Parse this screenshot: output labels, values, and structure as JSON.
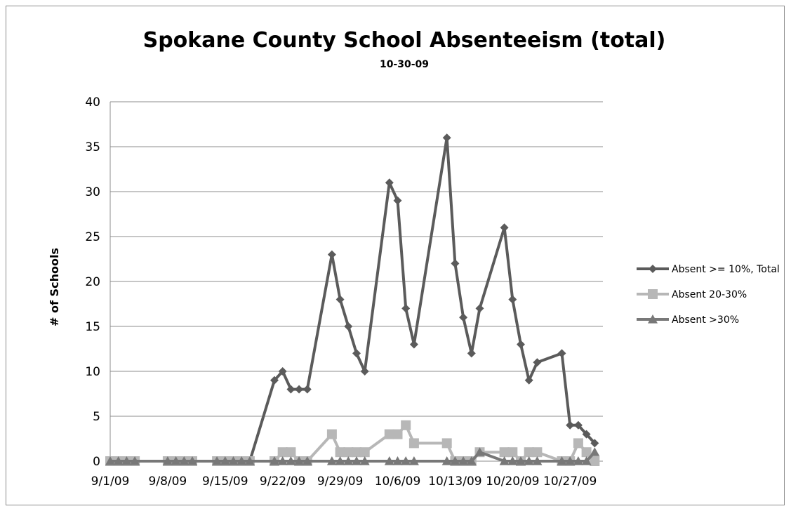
{
  "chart_data": {
    "type": "line",
    "title": "Spokane County School Absenteeism (total)",
    "subtitle": "10-30-09",
    "xlabel": "",
    "ylabel": "# of Schools",
    "ylim": [
      0,
      40
    ],
    "yticks": [
      "0",
      "5",
      "10",
      "15",
      "20",
      "25",
      "30",
      "35",
      "40"
    ],
    "xlim": [
      "2009-09-01",
      "2009-10-31"
    ],
    "xtick_labels": [
      "9/1/09",
      "9/8/09",
      "9/15/09",
      "9/22/09",
      "9/29/09",
      "10/6/09",
      "10/13/09",
      "10/20/09",
      "10/27/09"
    ],
    "xtick_dates": [
      "2009-09-01",
      "2009-09-08",
      "2009-09-15",
      "2009-09-22",
      "2009-09-29",
      "2009-10-06",
      "2009-10-13",
      "2009-10-20",
      "2009-10-27"
    ],
    "grid": "horizontal",
    "legend_position": "right",
    "series": [
      {
        "name": "Absent >= 10%, Total",
        "color": "#5b5b5b",
        "marker": "diamond",
        "points": [
          [
            "2009-09-01",
            0
          ],
          [
            "2009-09-02",
            0
          ],
          [
            "2009-09-03",
            0
          ],
          [
            "2009-09-04",
            0
          ],
          [
            "2009-09-08",
            0
          ],
          [
            "2009-09-09",
            0
          ],
          [
            "2009-09-10",
            0
          ],
          [
            "2009-09-11",
            0
          ],
          [
            "2009-09-14",
            0
          ],
          [
            "2009-09-15",
            0
          ],
          [
            "2009-09-16",
            0
          ],
          [
            "2009-09-17",
            0
          ],
          [
            "2009-09-18",
            0
          ],
          [
            "2009-09-21",
            9
          ],
          [
            "2009-09-22",
            10
          ],
          [
            "2009-09-23",
            8
          ],
          [
            "2009-09-24",
            8
          ],
          [
            "2009-09-25",
            8
          ],
          [
            "2009-09-28",
            23
          ],
          [
            "2009-09-29",
            18
          ],
          [
            "2009-09-30",
            15
          ],
          [
            "2009-10-01",
            12
          ],
          [
            "2009-10-02",
            10
          ],
          [
            "2009-10-05",
            31
          ],
          [
            "2009-10-06",
            29
          ],
          [
            "2009-10-07",
            17
          ],
          [
            "2009-10-08",
            13
          ],
          [
            "2009-10-12",
            36
          ],
          [
            "2009-10-13",
            22
          ],
          [
            "2009-10-14",
            16
          ],
          [
            "2009-10-15",
            12
          ],
          [
            "2009-10-16",
            17
          ],
          [
            "2009-10-19",
            26
          ],
          [
            "2009-10-20",
            18
          ],
          [
            "2009-10-21",
            13
          ],
          [
            "2009-10-22",
            9
          ],
          [
            "2009-10-23",
            11
          ],
          [
            "2009-10-26",
            12
          ],
          [
            "2009-10-27",
            4
          ],
          [
            "2009-10-28",
            4
          ],
          [
            "2009-10-29",
            3
          ],
          [
            "2009-10-30",
            2
          ]
        ]
      },
      {
        "name": "Absent 20-30%",
        "color": "#b7b7b7",
        "marker": "square",
        "points": [
          [
            "2009-09-01",
            0
          ],
          [
            "2009-09-02",
            0
          ],
          [
            "2009-09-03",
            0
          ],
          [
            "2009-09-04",
            0
          ],
          [
            "2009-09-08",
            0
          ],
          [
            "2009-09-09",
            0
          ],
          [
            "2009-09-10",
            0
          ],
          [
            "2009-09-11",
            0
          ],
          [
            "2009-09-14",
            0
          ],
          [
            "2009-09-15",
            0
          ],
          [
            "2009-09-16",
            0
          ],
          [
            "2009-09-17",
            0
          ],
          [
            "2009-09-18",
            0
          ],
          [
            "2009-09-21",
            0
          ],
          [
            "2009-09-22",
            1
          ],
          [
            "2009-09-23",
            1
          ],
          [
            "2009-09-24",
            0
          ],
          [
            "2009-09-25",
            0
          ],
          [
            "2009-09-28",
            3
          ],
          [
            "2009-09-29",
            1
          ],
          [
            "2009-09-30",
            1
          ],
          [
            "2009-10-01",
            1
          ],
          [
            "2009-10-02",
            1
          ],
          [
            "2009-10-05",
            3
          ],
          [
            "2009-10-06",
            3
          ],
          [
            "2009-10-07",
            4
          ],
          [
            "2009-10-08",
            2
          ],
          [
            "2009-10-12",
            2
          ],
          [
            "2009-10-13",
            0
          ],
          [
            "2009-10-14",
            0
          ],
          [
            "2009-10-15",
            0
          ],
          [
            "2009-10-16",
            1
          ],
          [
            "2009-10-19",
            1
          ],
          [
            "2009-10-20",
            1
          ],
          [
            "2009-10-21",
            0
          ],
          [
            "2009-10-22",
            1
          ],
          [
            "2009-10-23",
            1
          ],
          [
            "2009-10-26",
            0
          ],
          [
            "2009-10-27",
            0
          ],
          [
            "2009-10-28",
            2
          ],
          [
            "2009-10-29",
            1
          ],
          [
            "2009-10-30",
            0
          ]
        ]
      },
      {
        "name": "Absent >30%",
        "color": "#787878",
        "marker": "triangle",
        "points": [
          [
            "2009-09-01",
            0
          ],
          [
            "2009-09-02",
            0
          ],
          [
            "2009-09-03",
            0
          ],
          [
            "2009-09-04",
            0
          ],
          [
            "2009-09-08",
            0
          ],
          [
            "2009-09-09",
            0
          ],
          [
            "2009-09-10",
            0
          ],
          [
            "2009-09-11",
            0
          ],
          [
            "2009-09-14",
            0
          ],
          [
            "2009-09-15",
            0
          ],
          [
            "2009-09-16",
            0
          ],
          [
            "2009-09-17",
            0
          ],
          [
            "2009-09-18",
            0
          ],
          [
            "2009-09-21",
            0
          ],
          [
            "2009-09-22",
            0
          ],
          [
            "2009-09-23",
            0
          ],
          [
            "2009-09-24",
            0
          ],
          [
            "2009-09-25",
            0
          ],
          [
            "2009-09-28",
            0
          ],
          [
            "2009-09-29",
            0
          ],
          [
            "2009-09-30",
            0
          ],
          [
            "2009-10-01",
            0
          ],
          [
            "2009-10-02",
            0
          ],
          [
            "2009-10-05",
            0
          ],
          [
            "2009-10-06",
            0
          ],
          [
            "2009-10-07",
            0
          ],
          [
            "2009-10-08",
            0
          ],
          [
            "2009-10-12",
            0
          ],
          [
            "2009-10-13",
            0
          ],
          [
            "2009-10-14",
            0
          ],
          [
            "2009-10-15",
            0
          ],
          [
            "2009-10-16",
            1
          ],
          [
            "2009-10-19",
            0
          ],
          [
            "2009-10-20",
            0
          ],
          [
            "2009-10-21",
            0
          ],
          [
            "2009-10-22",
            0
          ],
          [
            "2009-10-23",
            0
          ],
          [
            "2009-10-26",
            0
          ],
          [
            "2009-10-27",
            0
          ],
          [
            "2009-10-28",
            0
          ],
          [
            "2009-10-29",
            0
          ],
          [
            "2009-10-30",
            1
          ]
        ]
      }
    ]
  }
}
